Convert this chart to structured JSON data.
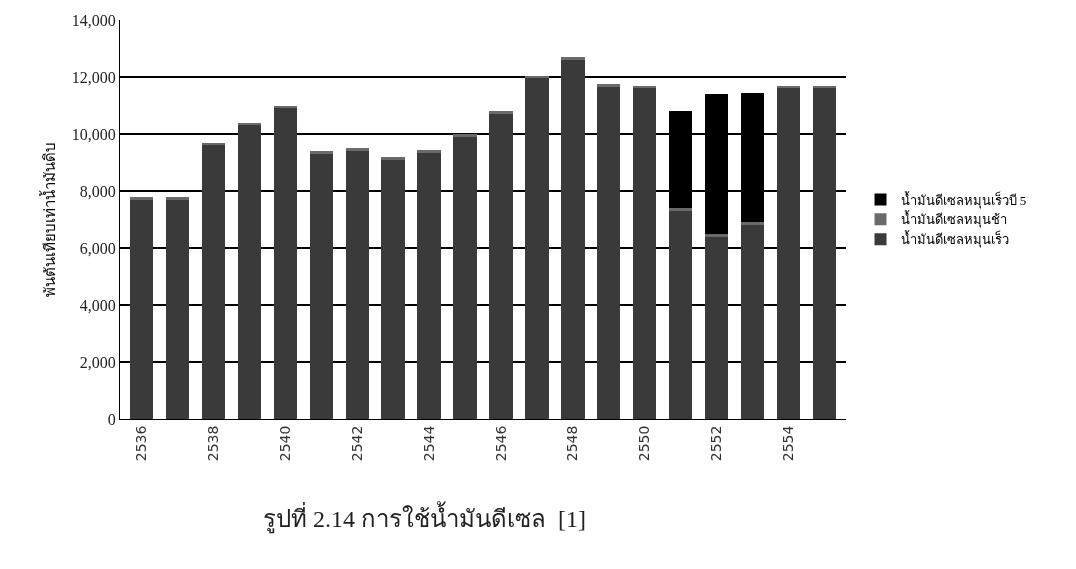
{
  "chart_data": {
    "type": "bar",
    "stacked": true,
    "ylabel": "พันตันเทียบเท่าน้ำมันดิบ",
    "annotations": [
      "รูปที่ 2.14 การใช้น้ำมันดีเซล  [1]"
    ],
    "categories": [
      "2536",
      null,
      "2538",
      null,
      "2540",
      null,
      "2542",
      null,
      "2544",
      null,
      "2546",
      null,
      "2548",
      null,
      "2550",
      null,
      "2552",
      null,
      "2554",
      null
    ],
    "series": [
      {
        "name": "น้ำมันดีเซลหมุนเร็ว",
        "color": "#3a3a3a",
        "values": [
          7700,
          7700,
          9600,
          10300,
          10900,
          9300,
          9400,
          9100,
          9350,
          9900,
          10700,
          11950,
          12600,
          11650,
          11600,
          7300,
          6400,
          6800,
          11600,
          11600
        ]
      },
      {
        "name": "น้ำมันดีเซลหมุนช้า",
        "color": "#6a6a6a",
        "values": [
          100,
          100,
          100,
          100,
          100,
          100,
          100,
          100,
          100,
          100,
          100,
          100,
          100,
          100,
          100,
          100,
          100,
          100,
          100,
          100
        ]
      },
      {
        "name": "น้ำมันดีเซลหมุนเร็วบี 5",
        "color": "#000000",
        "values": [
          null,
          null,
          null,
          null,
          null,
          null,
          null,
          null,
          null,
          null,
          null,
          null,
          null,
          null,
          null,
          3400,
          4900,
          4550,
          null,
          null
        ]
      }
    ],
    "ylim": [
      0,
      14000
    ],
    "yticks": [
      {
        "value": 0,
        "label": "0"
      },
      {
        "value": 2000,
        "label": "2,000"
      },
      {
        "value": 4000,
        "label": "4,000"
      },
      {
        "value": 6000,
        "label": "6,000"
      },
      {
        "value": 8000,
        "label": "8,000"
      },
      {
        "value": 10000,
        "label": "10,000"
      },
      {
        "value": 12000,
        "label": "12,000"
      },
      {
        "value": 14000,
        "label": "14,000"
      }
    ],
    "grid": "y",
    "legend": "right"
  }
}
